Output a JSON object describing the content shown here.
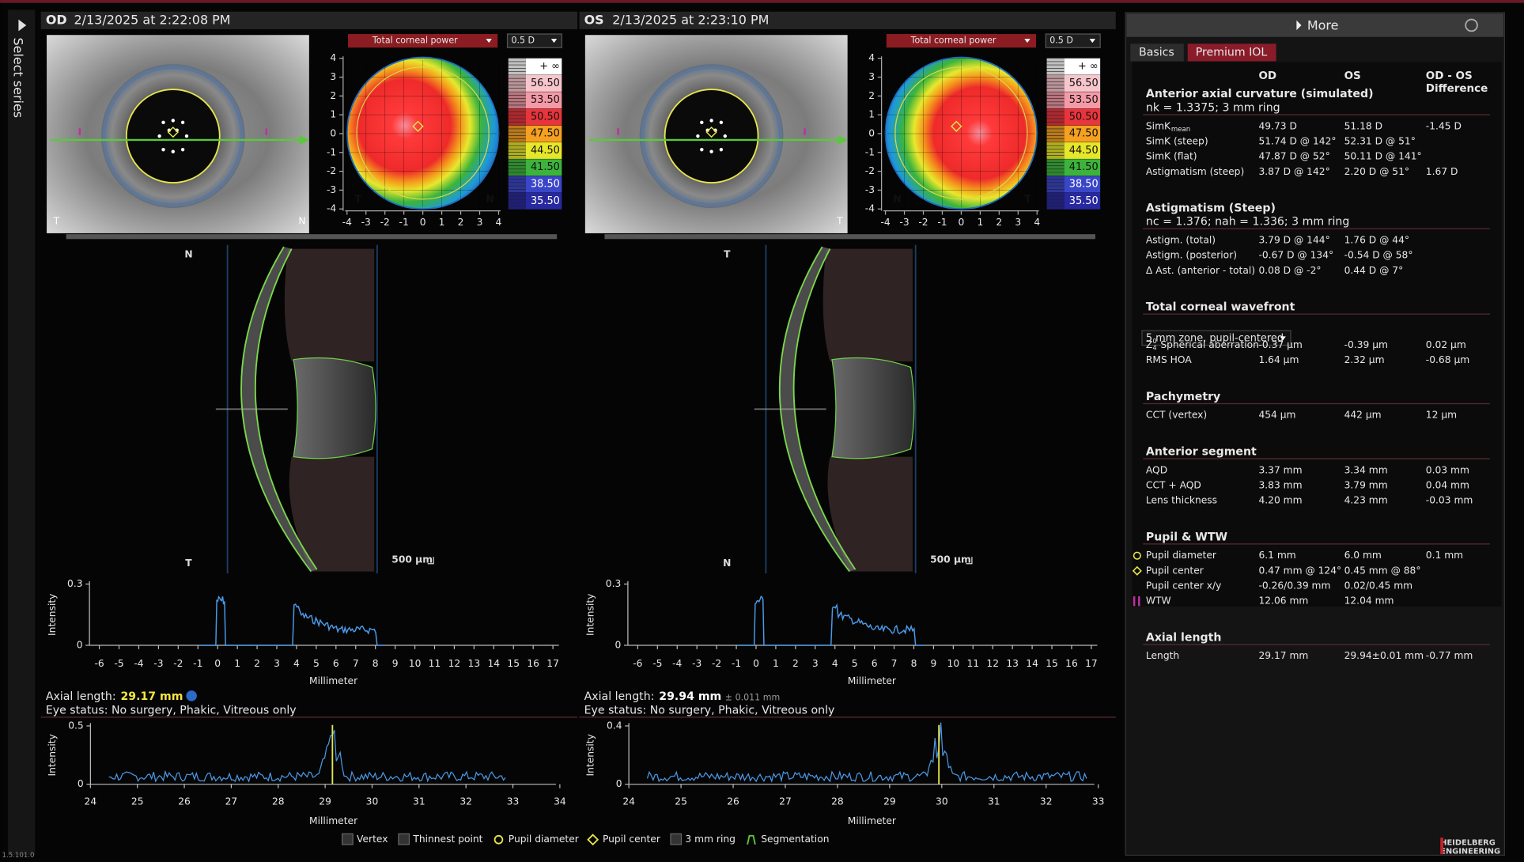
{
  "sidebar": {
    "label": "Select series"
  },
  "eyes": [
    {
      "eye": "OD",
      "datetime": "2/13/2025 at 2:22:08 PM",
      "map_type": "Total corneal power",
      "step": "0.5 D",
      "scale": [
        {
          "label": "+ ∞",
          "color": "#ffffff"
        },
        {
          "label": "56.50",
          "color": "#f7c6cc"
        },
        {
          "label": "53.50",
          "color": "#f39aa6"
        },
        {
          "label": "50.50",
          "color": "#e8343c"
        },
        {
          "label": "47.50",
          "color": "#f5a020"
        },
        {
          "label": "44.50",
          "color": "#e6e62a"
        },
        {
          "label": "41.50",
          "color": "#3cb43c"
        },
        {
          "label": "38.50",
          "color": "#3a46c8"
        },
        {
          "label": "35.50",
          "color": "#2828a0"
        }
      ],
      "map": {
        "xlim": [
          -4,
          4
        ],
        "ylim": [
          -4,
          4
        ],
        "xticks": [
          -4,
          -3,
          -2,
          -1,
          0,
          1,
          2,
          3,
          4
        ],
        "yticks": [
          -4,
          -3,
          -2,
          -1,
          0,
          1,
          2,
          3,
          4
        ],
        "label_left": "T",
        "label_right": "N"
      },
      "image_label_left": "T",
      "image_label_right": "N",
      "oct_top": "N",
      "oct_bottom": "T",
      "scale_bar": "500 µm",
      "intensity": {
        "ylabel": "Intensity",
        "xlabel": "Millimeter",
        "xlim": [
          -6.5,
          17.5
        ],
        "ylim": [
          0,
          0.3
        ],
        "xticks": [
          -6,
          -5,
          -4,
          -3,
          -2,
          -1,
          0,
          1,
          2,
          3,
          4,
          5,
          6,
          7,
          8,
          9,
          10,
          11,
          12,
          13,
          14,
          15,
          16,
          17
        ],
        "yticks": [
          0,
          0.3
        ]
      },
      "axial_label": "Axial length:",
      "axial_value": "29.17 mm",
      "eye_status": "Eye status: No surgery, Phakic, Vitreous only",
      "axial_scan": {
        "ylabel": "Intensity",
        "xlabel": "Millimeter",
        "xlim": [
          24,
          34
        ],
        "ylim": [
          0,
          0.5
        ],
        "xticks": [
          24,
          25,
          26,
          27,
          28,
          29,
          30,
          31,
          32,
          33,
          34
        ],
        "yticks": [
          0,
          0.5
        ]
      }
    },
    {
      "eye": "OS",
      "datetime": "2/13/2025 at 2:23:10 PM",
      "map_type": "Total corneal power",
      "step": "0.5 D",
      "scale": [
        {
          "label": "+ ∞",
          "color": "#ffffff"
        },
        {
          "label": "56.50",
          "color": "#f7c6cc"
        },
        {
          "label": "53.50",
          "color": "#f39aa6"
        },
        {
          "label": "50.50",
          "color": "#e8343c"
        },
        {
          "label": "47.50",
          "color": "#f5a020"
        },
        {
          "label": "44.50",
          "color": "#e6e62a"
        },
        {
          "label": "41.50",
          "color": "#3cb43c"
        },
        {
          "label": "38.50",
          "color": "#3a46c8"
        },
        {
          "label": "35.50",
          "color": "#2828a0"
        }
      ],
      "map": {
        "xlim": [
          -4,
          4
        ],
        "ylim": [
          -4,
          4
        ],
        "xticks": [
          -4,
          -3,
          -2,
          -1,
          0,
          1,
          2,
          3,
          4
        ],
        "yticks": [
          -4,
          -3,
          -2,
          -1,
          0,
          1,
          2,
          3,
          4
        ],
        "label_left": "N",
        "label_right": "T"
      },
      "image_label_right": "T",
      "oct_top": "T",
      "oct_bottom": "N",
      "scale_bar": "500 µm",
      "intensity": {
        "ylabel": "Intensity",
        "xlabel": "Millimeter",
        "xlim": [
          -6.5,
          17.5
        ],
        "ylim": [
          0,
          0.3
        ],
        "xticks": [
          -6,
          -5,
          -4,
          -3,
          -2,
          -1,
          0,
          1,
          2,
          3,
          4,
          5,
          6,
          7,
          8,
          9,
          10,
          11,
          12,
          13,
          14,
          15,
          16,
          17
        ],
        "yticks": [
          0,
          0.3
        ]
      },
      "axial_label": "Axial length:",
      "axial_value": "29.94 mm",
      "axial_error": "± 0.011 mm",
      "eye_status": "Eye status: No surgery, Phakic, Vitreous only",
      "axial_scan": {
        "ylabel": "Intensity",
        "xlabel": "Millimeter",
        "xlim": [
          24,
          33
        ],
        "ylim": [
          0,
          0.4
        ],
        "xticks": [
          24,
          25,
          26,
          27,
          28,
          29,
          30,
          31,
          32,
          33
        ],
        "yticks": [
          0,
          0.4
        ]
      }
    }
  ],
  "legend": [
    "Vertex",
    "Thinnest point",
    "Pupil diameter",
    "Pupil center",
    "3 mm ring",
    "Segmentation"
  ],
  "panel": {
    "more": "More",
    "tabs": [
      "Basics",
      "Premium IOL"
    ],
    "columns": [
      "OD",
      "OS"
    ],
    "diff_header": [
      "OD - OS",
      "Difference"
    ],
    "sections": [
      {
        "title": "Anterior axial curvature (simulated)",
        "subtitle": "nk = 1.3375; 3 mm ring",
        "rows": [
          {
            "label": "SimK",
            "sub": "mean",
            "values": [
              "49.73 D",
              "51.18 D",
              "-1.45 D"
            ]
          },
          {
            "label": "SimK (steep)",
            "values": [
              "51.74 D @ 142°",
              "52.31 D @ 51°"
            ]
          },
          {
            "label": "SimK (flat)",
            "values": [
              "47.87 D @ 52°",
              "50.11 D @ 141°"
            ]
          },
          {
            "label": "Astigmatism (steep)",
            "values": [
              "3.87 D @ 142°",
              "2.20 D @ 51°",
              "1.67 D"
            ]
          }
        ]
      },
      {
        "title": "Astigmatism (Steep)",
        "subtitle": "nc = 1.376; nah = 1.336; 3 mm ring",
        "rows": [
          {
            "label": "Astigm. (total)",
            "values": [
              "3.79 D @ 144°",
              "1.76 D @ 44°"
            ]
          },
          {
            "label": "Astigm. (posterior)",
            "values": [
              "-0.67 D @ 134°",
              "-0.54 D @ 58°"
            ]
          },
          {
            "label": "Δ Ast. (anterior - total)",
            "values": [
              "0.08 D @ -2°",
              "0.44 D @ 7°"
            ]
          }
        ]
      },
      {
        "title": "Total corneal wavefront",
        "dropdown": "5 mm zone, pupil-centered",
        "rows": [
          {
            "symbol": "Z",
            "sup": "0",
            "sub": "4",
            "label": "Spherical aberration",
            "values": [
              "-0.37 µm",
              "-0.39 µm",
              "0.02 µm"
            ]
          },
          {
            "label": "RMS HOA",
            "values": [
              "1.64 µm",
              "2.32 µm",
              "-0.68 µm"
            ]
          }
        ]
      },
      {
        "title": "Pachymetry",
        "rows": [
          {
            "label": "CCT (vertex)",
            "values": [
              "454 µm",
              "442 µm",
              "12 µm"
            ]
          }
        ]
      },
      {
        "title": "Anterior segment",
        "rows": [
          {
            "label": "AQD",
            "values": [
              "3.37 mm",
              "3.34 mm",
              "0.03 mm"
            ]
          },
          {
            "label": "CCT + AQD",
            "values": [
              "3.83 mm",
              "3.79 mm",
              "0.04 mm"
            ]
          },
          {
            "label": "Lens thickness",
            "values": [
              "4.20 mm",
              "4.23 mm",
              "-0.03 mm"
            ]
          }
        ]
      },
      {
        "title": "Pupil & WTW",
        "rows": [
          {
            "label": "Pupil diameter",
            "values": [
              "6.1 mm",
              "6.0 mm",
              "0.1 mm"
            ]
          },
          {
            "label": "Pupil center",
            "values": [
              "0.47 mm @ 124°",
              "0.45 mm @ 88°"
            ]
          },
          {
            "label": "Pupil center x/y",
            "values": [
              "-0.26/0.39 mm",
              "0.02/0.45 mm"
            ]
          },
          {
            "label": "WTW",
            "values": [
              "12.06 mm",
              "12.04 mm"
            ]
          }
        ]
      },
      {
        "title": "Axial length",
        "rows": [
          {
            "label": "Length",
            "values": [
              "29.17 mm",
              "29.94±0.01 mm",
              "-0.77 mm"
            ]
          }
        ]
      }
    ]
  },
  "version": "1.5.101.0",
  "brand": [
    "HEIDELBERG",
    "ENGINEERING"
  ]
}
